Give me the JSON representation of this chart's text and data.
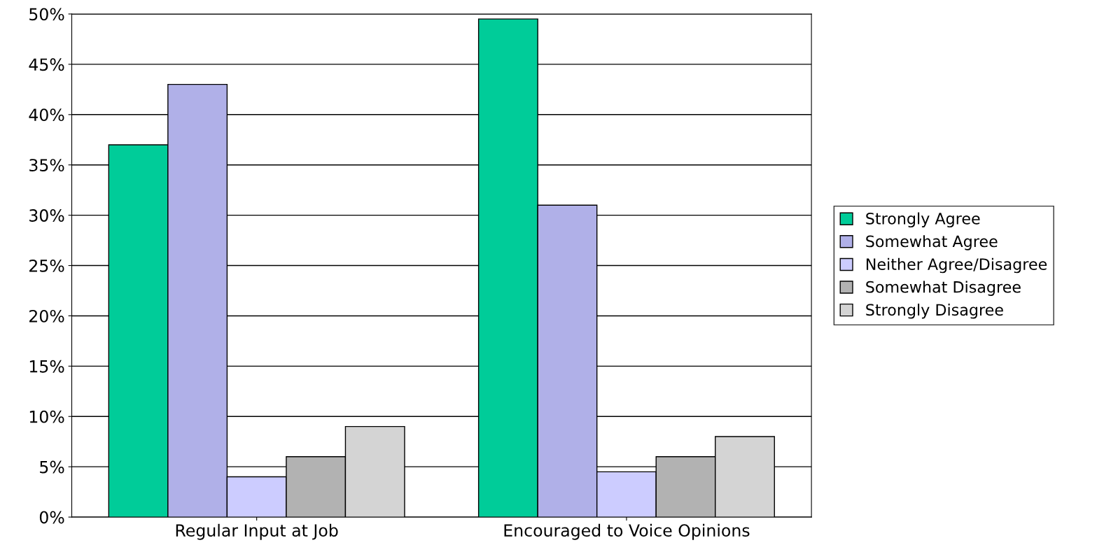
{
  "chart_data": {
    "type": "bar",
    "categories": [
      "Regular Input at Job",
      "Encouraged to Voice Opinions"
    ],
    "series": [
      {
        "name": "Strongly Agree",
        "color": "#00cc99",
        "values": [
          37,
          49.5
        ]
      },
      {
        "name": "Somewhat Agree",
        "color": "#b0b0e8",
        "values": [
          43,
          31
        ]
      },
      {
        "name": "Neither Agree/Disagree",
        "color": "#ccccff",
        "values": [
          4,
          4.5
        ]
      },
      {
        "name": "Somewhat Disagree",
        "color": "#b2b2b2",
        "values": [
          6,
          6
        ]
      },
      {
        "name": "Strongly Disagree",
        "color": "#d4d4d4",
        "values": [
          9,
          8
        ]
      }
    ],
    "ylim": [
      0,
      50
    ],
    "yticks": [
      {
        "value": 0,
        "label": "0%"
      },
      {
        "value": 5,
        "label": "5%"
      },
      {
        "value": 10,
        "label": "10%"
      },
      {
        "value": 15,
        "label": "15%"
      },
      {
        "value": 20,
        "label": "20%"
      },
      {
        "value": 25,
        "label": "25%"
      },
      {
        "value": 30,
        "label": "30%"
      },
      {
        "value": 35,
        "label": "35%"
      },
      {
        "value": 40,
        "label": "40%"
      },
      {
        "value": 45,
        "label": "45%"
      },
      {
        "value": 50,
        "label": "50%"
      }
    ],
    "grid": "y",
    "legend": "right"
  }
}
